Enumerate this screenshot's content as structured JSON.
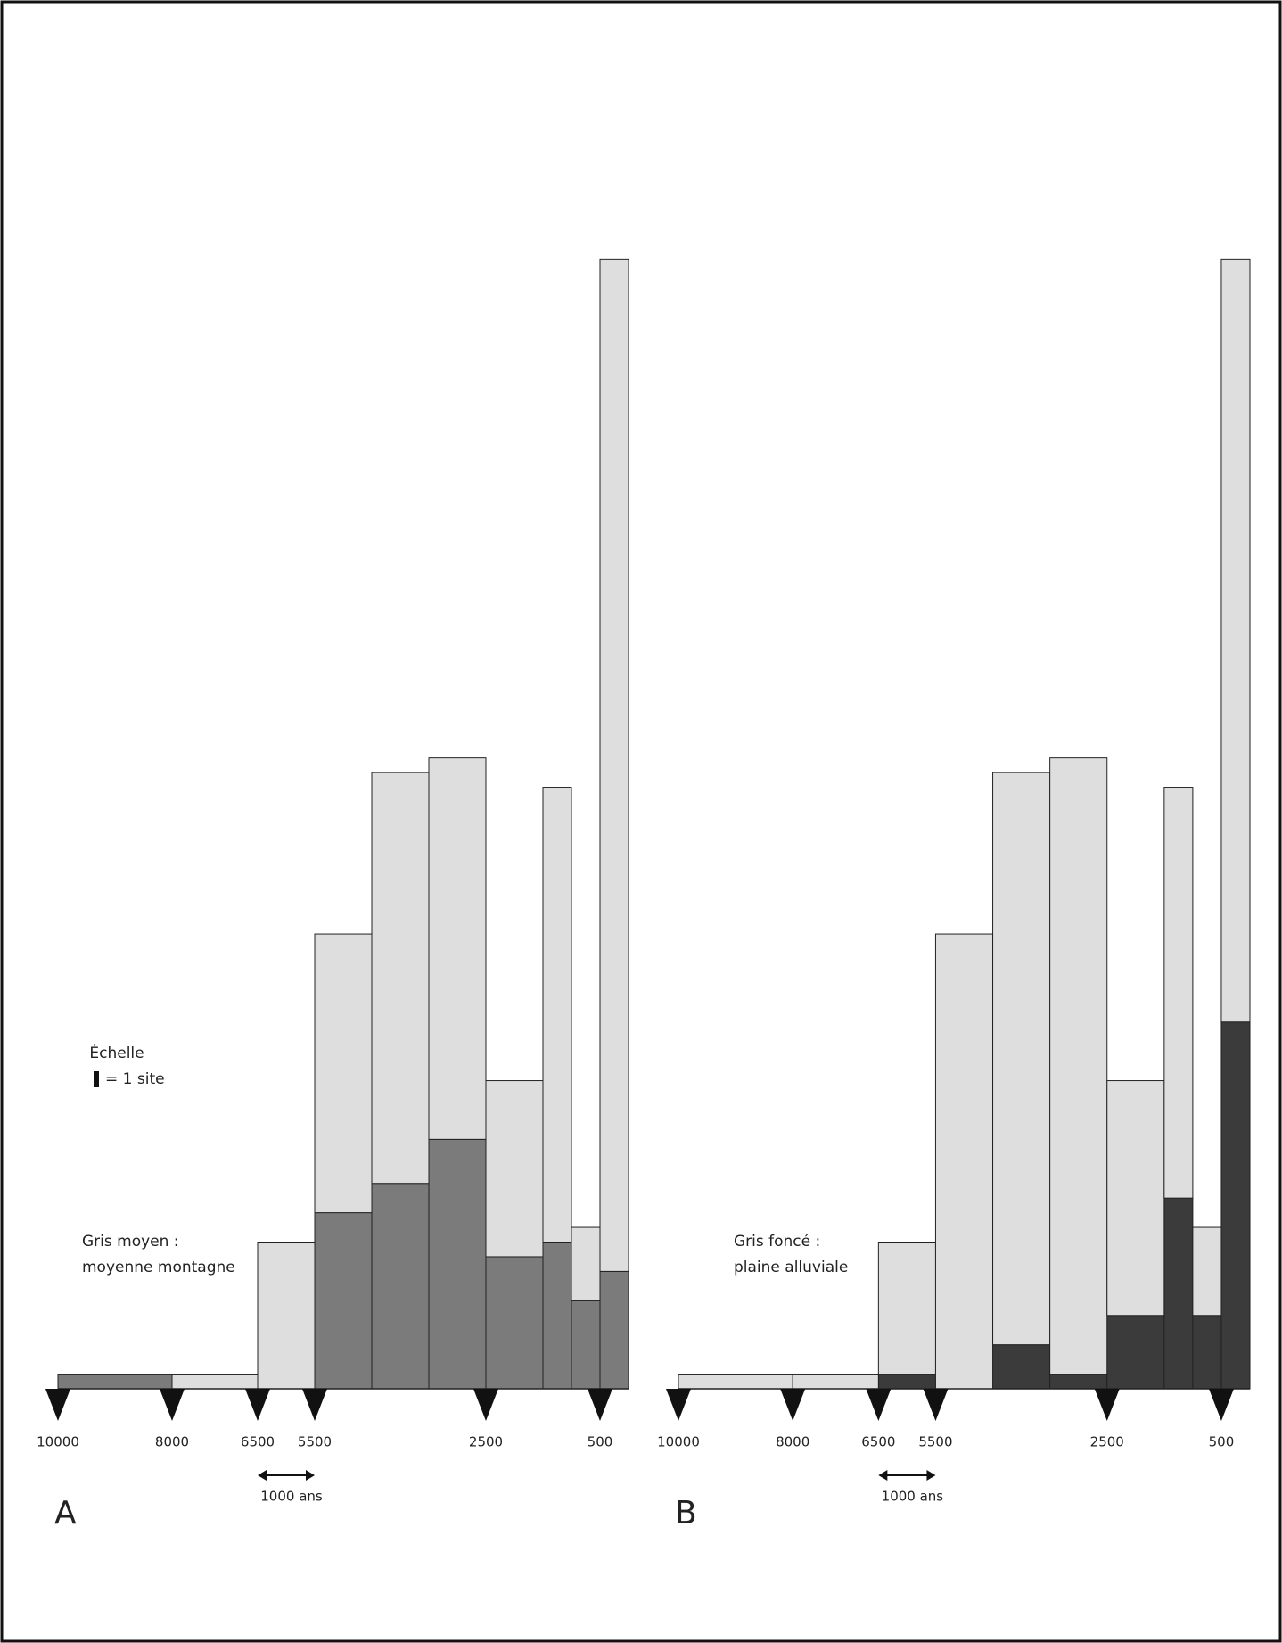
{
  "chart_data": [
    {
      "type": "histogram",
      "panel": "A",
      "bins": [
        10000,
        8000,
        6500,
        5500,
        4500,
        3500,
        2500,
        1500,
        1000,
        500,
        0
      ],
      "series": [
        {
          "color": "#7b7b7b",
          "values": [
            1,
            0,
            0,
            12,
            14,
            17,
            9,
            10,
            6,
            8
          ]
        },
        {
          "color": "#dedede",
          "values": [
            0,
            1,
            10,
            19,
            28,
            26,
            12,
            31,
            5,
            69
          ]
        }
      ],
      "xlim": [
        10000,
        0
      ],
      "xticks": [
        10000,
        8000,
        6500,
        5500,
        2500,
        500
      ],
      "scale_label": "1000 ans",
      "annotations": [
        "Échelle",
        "= 1 site",
        "Gris moyen :",
        "moyenne montagne"
      ]
    },
    {
      "type": "histogram",
      "panel": "B",
      "bins": [
        10000,
        8000,
        6500,
        5500,
        4500,
        3500,
        2500,
        1500,
        1000,
        500,
        0
      ],
      "series": [
        {
          "color": "#3b3b3b",
          "values": [
            0,
            0,
            1,
            0,
            3,
            1,
            5,
            13,
            5,
            25
          ]
        },
        {
          "color": "#dedede",
          "values": [
            1,
            1,
            9,
            31,
            39,
            42,
            16,
            28,
            6,
            52
          ]
        }
      ],
      "xlim": [
        10000,
        0
      ],
      "xticks": [
        10000,
        8000,
        6500,
        5500,
        2500,
        500
      ],
      "scale_label": "1000 ans",
      "annotations": [
        "Gris foncé :",
        "plaine alluviale"
      ]
    }
  ]
}
